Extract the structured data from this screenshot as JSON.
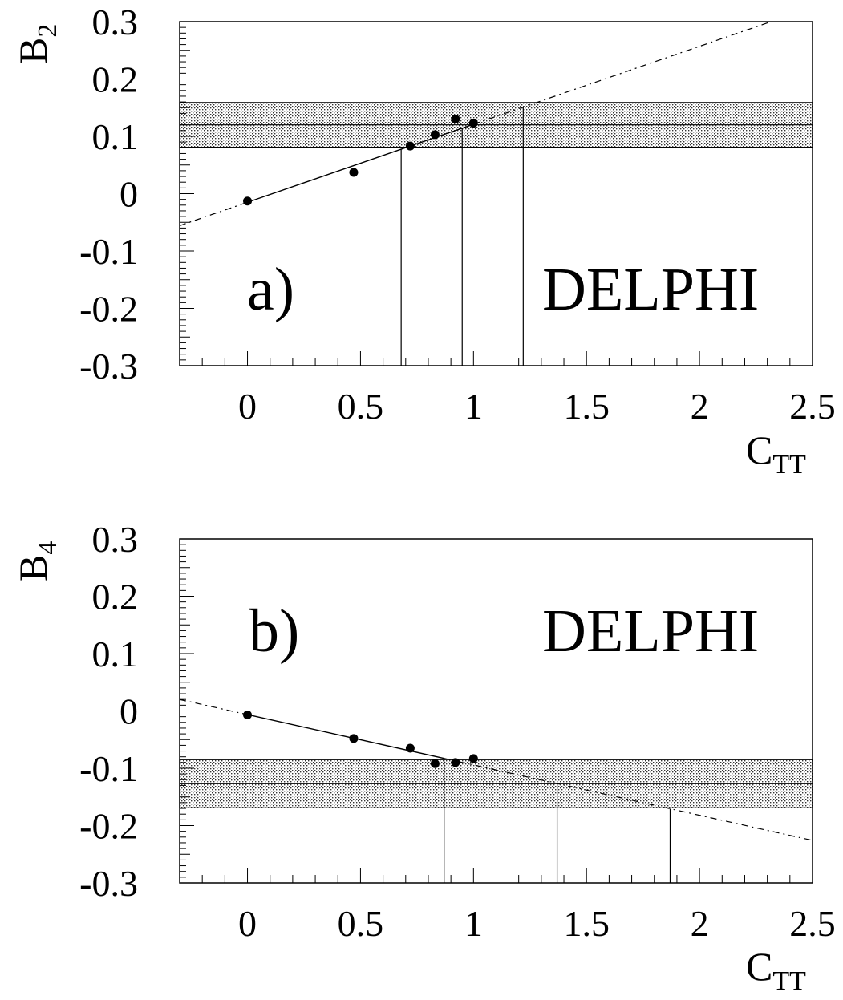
{
  "chart_data": [
    {
      "type": "scatter",
      "panel_label": "a)",
      "experiment_label": "DELPHI",
      "xlabel": "C",
      "xlabel_sub": "TT",
      "ylabel": "B",
      "ylabel_sub": "2",
      "xlim": [
        -0.3,
        2.5
      ],
      "ylim": [
        -0.3,
        0.3
      ],
      "x_ticks": [
        "0",
        "0.5",
        "1",
        "1.5",
        "2",
        "2.5"
      ],
      "y_ticks": [
        "0.3",
        "0.2",
        "0.1",
        "0",
        "-0.1",
        "-0.2",
        "-0.3"
      ],
      "points": [
        {
          "x": 0.0,
          "y": -0.013
        },
        {
          "x": 0.47,
          "y": 0.037
        },
        {
          "x": 0.72,
          "y": 0.083
        },
        {
          "x": 0.83,
          "y": 0.103
        },
        {
          "x": 0.92,
          "y": 0.13
        },
        {
          "x": 1.0,
          "y": 0.123
        }
      ],
      "fit_line": {
        "slope": 0.136,
        "intercept": -0.015,
        "solid_range": [
          0.0,
          1.0
        ]
      },
      "band": {
        "center": 0.12,
        "low": 0.081,
        "high": 0.159
      },
      "vertical_lines": [
        0.68,
        0.95,
        1.22
      ]
    },
    {
      "type": "scatter",
      "panel_label": "b)",
      "experiment_label": "DELPHI",
      "xlabel": "C",
      "xlabel_sub": "TT",
      "ylabel": "B",
      "ylabel_sub": "4",
      "xlim": [
        -0.3,
        2.5
      ],
      "ylim": [
        -0.3,
        0.3
      ],
      "x_ticks": [
        "0",
        "0.5",
        "1",
        "1.5",
        "2",
        "2.5"
      ],
      "y_ticks": [
        "0.3",
        "0.2",
        "0.1",
        "0",
        "-0.1",
        "-0.2",
        "-0.3"
      ],
      "points": [
        {
          "x": 0.0,
          "y": -0.007
        },
        {
          "x": 0.47,
          "y": -0.048
        },
        {
          "x": 0.72,
          "y": -0.065
        },
        {
          "x": 0.83,
          "y": -0.092
        },
        {
          "x": 0.92,
          "y": -0.09
        },
        {
          "x": 1.0,
          "y": -0.083
        }
      ],
      "fit_line": {
        "slope": -0.0878,
        "intercept": -0.0064,
        "solid_range": [
          0.0,
          0.87
        ]
      },
      "band": {
        "center": -0.127,
        "low": -0.169,
        "high": -0.085
      },
      "vertical_lines": [
        0.87,
        1.37,
        1.87
      ]
    }
  ]
}
